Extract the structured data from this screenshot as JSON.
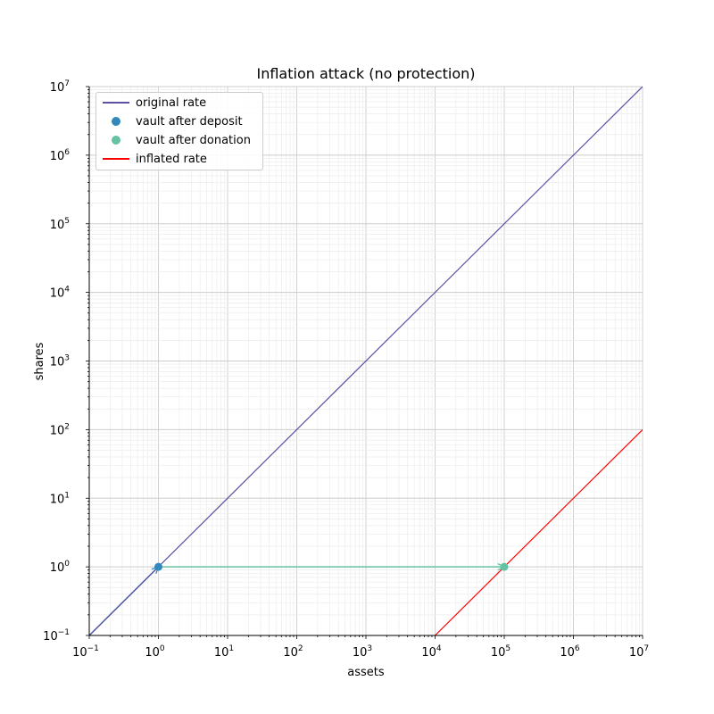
{
  "chart_data": {
    "type": "line",
    "title": "Inflation attack (no protection)",
    "xlabel": "assets",
    "ylabel": "shares",
    "xscale": "log",
    "yscale": "log",
    "xlim": [
      0.1,
      10000000
    ],
    "ylim": [
      0.1,
      10000000
    ],
    "grid": "major and minor",
    "legend_placement": "upper-left",
    "tick_base": "10",
    "x_tick_exponents": [
      -1,
      0,
      1,
      2,
      3,
      4,
      5,
      6,
      7
    ],
    "y_tick_exponents": [
      -1,
      0,
      1,
      2,
      3,
      4,
      5,
      6,
      7
    ],
    "series": [
      {
        "name": "original rate",
        "kind": "line",
        "color": "#5e4fa2",
        "x": [
          0.1,
          10000000
        ],
        "y": [
          0.1,
          10000000
        ]
      },
      {
        "name": "vault after deposit",
        "kind": "scatter",
        "color": "#3288bd",
        "x": [
          1
        ],
        "y": [
          1
        ]
      },
      {
        "name": "vault after donation",
        "kind": "scatter",
        "color": "#66c2a5",
        "x": [
          100000
        ],
        "y": [
          1
        ]
      },
      {
        "name": "inflated rate",
        "kind": "line",
        "color": "#ff0000",
        "x": [
          10000,
          10000000
        ],
        "y": [
          0.1,
          100
        ]
      }
    ],
    "annotations": [
      {
        "kind": "arrow",
        "color": "#3288bd",
        "from": [
          0.1,
          0.1
        ],
        "to": [
          1,
          1
        ]
      },
      {
        "kind": "arrow",
        "color": "#66c2a5",
        "from": [
          1,
          1
        ],
        "to": [
          100000,
          1
        ]
      }
    ]
  }
}
